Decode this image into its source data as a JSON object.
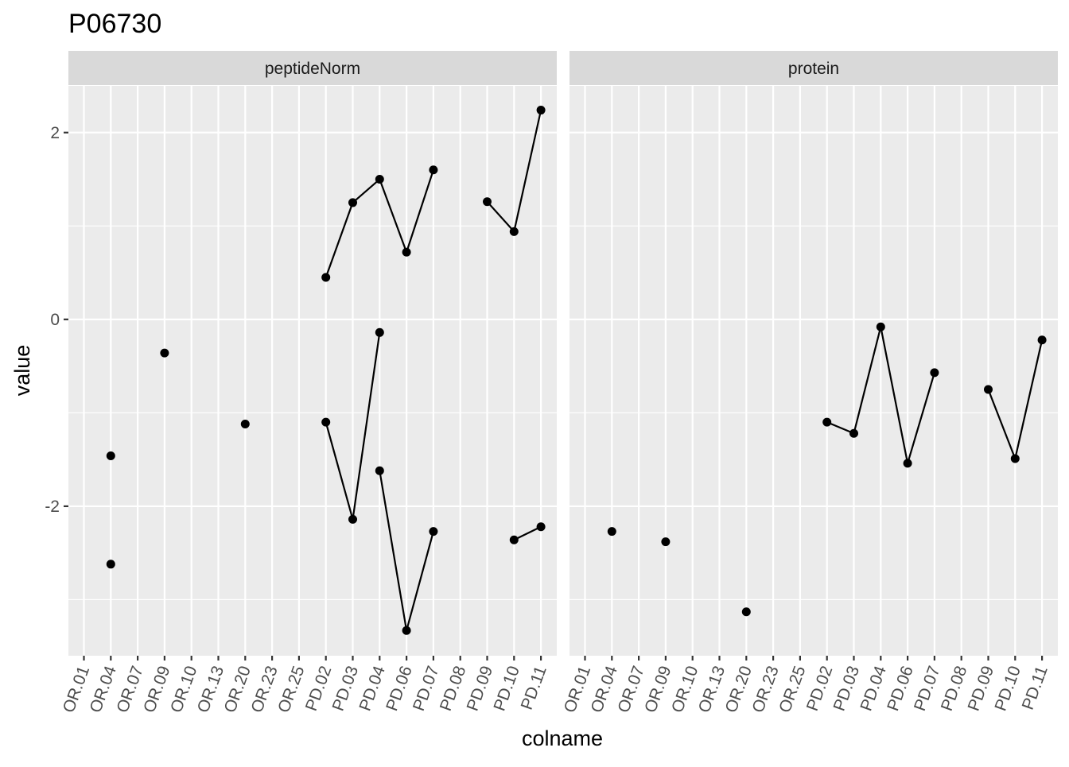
{
  "chart_data": {
    "type": "line",
    "title": "P06730",
    "xlabel": "colname",
    "ylabel": "value",
    "categories": [
      "OR.01",
      "OR.04",
      "OR.07",
      "OR.09",
      "OR.10",
      "OR.13",
      "OR.20",
      "OR.23",
      "OR.25",
      "PD.02",
      "PD.03",
      "PD.04",
      "PD.06",
      "PD.07",
      "PD.08",
      "PD.09",
      "PD.10",
      "PD.11"
    ],
    "ylim": [
      -3.6,
      2.5
    ],
    "yticks": [
      -2,
      0,
      2
    ],
    "yticklabels": [
      "-2",
      "0",
      "2"
    ],
    "grid": true,
    "panels": [
      {
        "name": "peptideNorm",
        "series": [
          {
            "points": [
              {
                "x": "OR.04",
                "y": -1.46
              },
              {
                "x": "OR.09",
                "y": -0.36
              },
              {
                "x": "OR.20",
                "y": -1.12
              },
              {
                "x": "PD.02",
                "y": 0.45
              },
              {
                "x": "PD.03",
                "y": 1.25
              },
              {
                "x": "PD.04",
                "y": 1.5
              },
              {
                "x": "PD.06",
                "y": 0.72
              },
              {
                "x": "PD.07",
                "y": 1.6
              },
              {
                "x": "PD.09",
                "y": 1.26
              },
              {
                "x": "PD.10",
                "y": 0.94
              },
              {
                "x": "PD.11",
                "y": 2.24
              }
            ]
          },
          {
            "points": [
              {
                "x": "OR.04",
                "y": -2.62
              },
              {
                "x": "PD.02",
                "y": -1.1
              },
              {
                "x": "PD.03",
                "y": -2.14
              },
              {
                "x": "PD.04",
                "y": -0.14
              },
              {
                "x": "PD.10",
                "y": -2.36
              },
              {
                "x": "PD.11",
                "y": -2.22
              }
            ]
          },
          {
            "points": [
              {
                "x": "PD.04",
                "y": -1.62
              },
              {
                "x": "PD.06",
                "y": -3.33
              },
              {
                "x": "PD.07",
                "y": -2.27
              }
            ]
          }
        ]
      },
      {
        "name": "protein",
        "series": [
          {
            "points": [
              {
                "x": "OR.04",
                "y": -2.27
              },
              {
                "x": "OR.09",
                "y": -2.38
              },
              {
                "x": "OR.20",
                "y": -3.13
              },
              {
                "x": "PD.02",
                "y": -1.1
              },
              {
                "x": "PD.03",
                "y": -1.22
              },
              {
                "x": "PD.04",
                "y": -0.08
              },
              {
                "x": "PD.06",
                "y": -1.54
              },
              {
                "x": "PD.07",
                "y": -0.57
              },
              {
                "x": "PD.09",
                "y": -0.75
              },
              {
                "x": "PD.10",
                "y": -1.49
              },
              {
                "x": "PD.11",
                "y": -0.22
              }
            ]
          }
        ]
      }
    ]
  },
  "colors": {
    "panel_background": "#ebebeb",
    "strip_background": "#d9d9d9",
    "grid": "#ffffff",
    "line": "#000000",
    "point": "#000000",
    "tick_text": "#4d4d4d"
  }
}
